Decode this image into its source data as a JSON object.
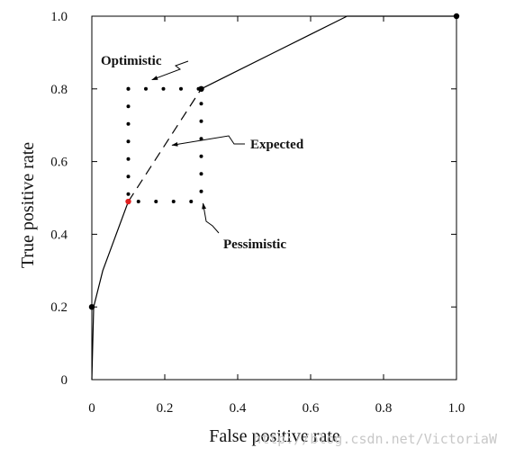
{
  "chart_data": {
    "type": "line",
    "xlabel": "False positive rate",
    "ylabel": "True positive rate",
    "xlim": [
      0,
      1
    ],
    "ylim": [
      0,
      1
    ],
    "grid": false,
    "x_ticks": [
      {
        "value": 0,
        "label": "0"
      },
      {
        "value": 0.2,
        "label": "0.2"
      },
      {
        "value": 0.4,
        "label": "0.4"
      },
      {
        "value": 0.6,
        "label": "0.6"
      },
      {
        "value": 0.8,
        "label": "0.8"
      },
      {
        "value": 1.0,
        "label": "1.0"
      }
    ],
    "y_ticks": [
      {
        "value": 0,
        "label": "0"
      },
      {
        "value": 0.2,
        "label": "0.2"
      },
      {
        "value": 0.4,
        "label": "0.4"
      },
      {
        "value": 0.6,
        "label": "0.6"
      },
      {
        "value": 0.8,
        "label": "0.8"
      },
      {
        "value": 1.0,
        "label": "1.0"
      }
    ],
    "series": [
      {
        "style": "solid",
        "color": "#000000",
        "x": [
          0,
          0.005,
          0.03,
          0.1
        ],
        "y": [
          0,
          0.2,
          0.3,
          0.49
        ]
      },
      {
        "style": "dashed",
        "color": "#000000",
        "x": [
          0.1,
          0.3
        ],
        "y": [
          0.49,
          0.8
        ]
      },
      {
        "style": "solid",
        "color": "#000000",
        "x": [
          0.3,
          0.5,
          0.6,
          0.7,
          1.0
        ],
        "y": [
          0.8,
          0.9,
          0.95,
          1.0,
          1.0
        ]
      },
      {
        "style": "dotted",
        "color": "#000000",
        "x": [
          0.1,
          0.3,
          0.3
        ],
        "y": [
          0.8,
          0.8,
          0.49
        ]
      },
      {
        "style": "dotted",
        "color": "#000000",
        "x": [
          0.1,
          0.1,
          0.3
        ],
        "y": [
          0.8,
          0.49,
          0.49
        ]
      }
    ],
    "points": [
      {
        "x": 0,
        "y": 0.2,
        "color": "#000000"
      },
      {
        "x": 0.1,
        "y": 0.49,
        "color": "#e02020"
      },
      {
        "x": 0.3,
        "y": 0.8,
        "color": "#000000"
      },
      {
        "x": 1.0,
        "y": 1.0,
        "color": "#000000"
      }
    ],
    "annotations": [
      {
        "text": "Optimistic",
        "target_x": 0.165,
        "target_y": 0.825
      },
      {
        "text": "Expected",
        "target_x": 0.22,
        "target_y": 0.645
      },
      {
        "text": "Pessimistic",
        "target_x": 0.305,
        "target_y": 0.485
      }
    ]
  },
  "watermark": "http://blog.csdn.net/VictoriaW"
}
